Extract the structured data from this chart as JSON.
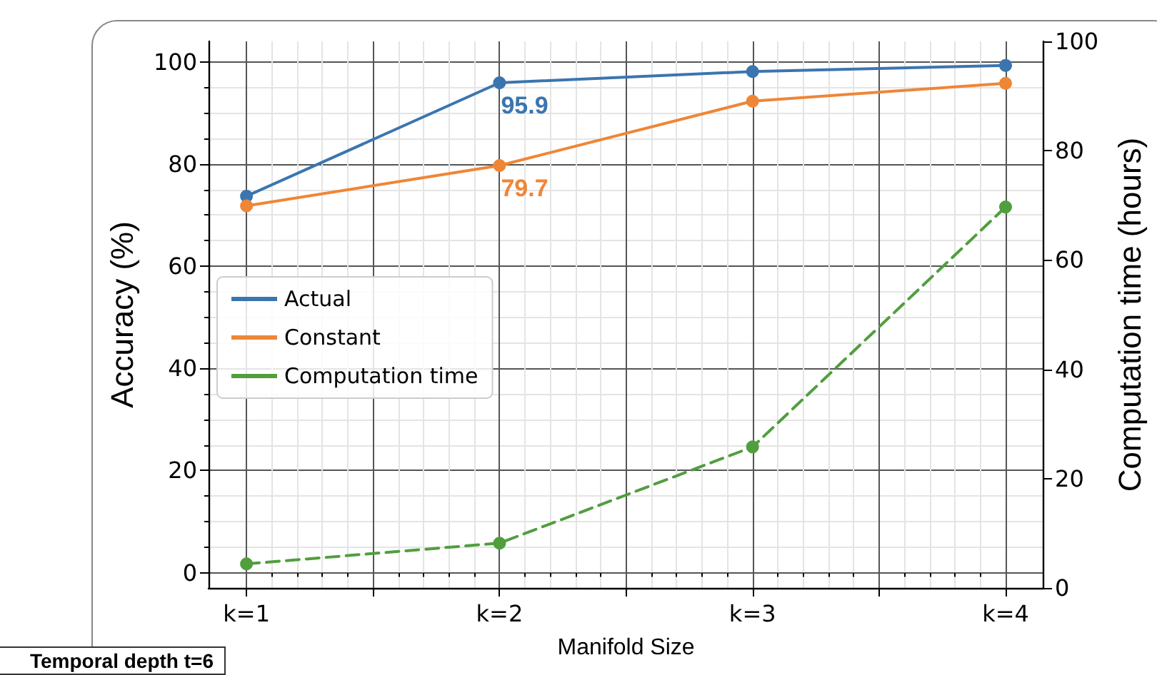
{
  "chart_data": {
    "type": "line",
    "xlabel": "Manifold Size",
    "ylabel": "Accuracy (%)",
    "y2label": "Computation time (hours)",
    "x": [
      1,
      2,
      3,
      4
    ],
    "series": [
      {
        "name": "Actual",
        "color": "#3b75af",
        "values": [
          73.7,
          95.9,
          98.1,
          99.3
        ]
      },
      {
        "name": "Constant",
        "color": "#ef8636",
        "values": [
          71.8,
          79.7,
          92.3,
          95.8
        ]
      },
      {
        "name": "Computation time",
        "color": "#519e3e",
        "values": [
          4.4,
          8.2,
          25.8,
          69.7
        ],
        "axis": "y2",
        "line_style": "dashed"
      }
    ],
    "xlim": [
      0.85,
      4.15
    ],
    "xticks": [
      {
        "value": 1,
        "label": "k=1"
      },
      {
        "value": 1.5,
        "label": null
      },
      {
        "value": 2,
        "label": "k=2"
      },
      {
        "value": 2.5,
        "label": null
      },
      {
        "value": 3,
        "label": "k=3"
      },
      {
        "value": 3.5,
        "label": null
      },
      {
        "value": 4,
        "label": "k=4"
      }
    ],
    "ylim": [
      -3,
      104
    ],
    "yticks": [
      0,
      20,
      40,
      60,
      80,
      100
    ],
    "y2lim": [
      0,
      100
    ],
    "y2ticks": [
      0,
      20,
      40,
      60,
      80,
      100
    ],
    "annotations": [
      {
        "text": "95.9",
        "x": 2,
        "y": 95.9
      },
      {
        "text": "79.7",
        "x": 2,
        "y": 79.7
      },
      "Temporal depth t=6"
    ],
    "grid": true,
    "legend": "center left",
    "marker": "circle",
    "line_style": "solid"
  }
}
